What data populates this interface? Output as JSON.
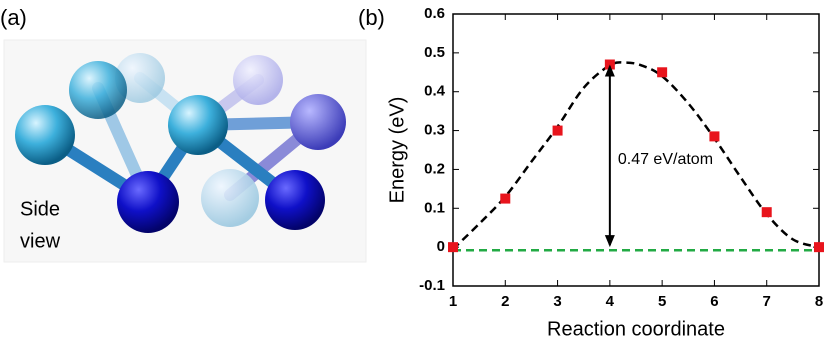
{
  "panel_a": {
    "label": "(a)",
    "caption": [
      "Side",
      "view"
    ]
  },
  "chart_data": {
    "type": "scatter",
    "panel_label": "(b)",
    "x_label": "Reaction coordinate",
    "y_label": "Energy (eV)",
    "series": [
      {
        "kind": "points",
        "marker": "square",
        "color": "#e8141c",
        "x": [
          1,
          2,
          3,
          4,
          5,
          6,
          7,
          8
        ],
        "values": [
          0,
          0.125,
          0.3,
          0.47,
          0.45,
          0.285,
          0.09,
          0
        ]
      },
      {
        "kind": "curve",
        "dash": true,
        "color": "#000000",
        "x": [
          1,
          1.5,
          2,
          2.5,
          3,
          3.5,
          4,
          4.3,
          4.6,
          5,
          5.5,
          6,
          6.5,
          7,
          7.5,
          8
        ],
        "values": [
          -0.005,
          0.06,
          0.13,
          0.22,
          0.31,
          0.41,
          0.468,
          0.475,
          0.468,
          0.44,
          0.37,
          0.28,
          0.18,
          0.085,
          0.02,
          0
        ]
      }
    ],
    "reference_line": {
      "value": -0.008,
      "color": "#22aa44"
    },
    "annotation": {
      "text": "0.47 eV/atom",
      "x": 4,
      "from": 0,
      "to": 0.47
    },
    "xlim": [
      1,
      8
    ],
    "xticks": [
      1,
      2,
      3,
      4,
      5,
      6,
      7,
      8
    ],
    "ylim": [
      -0.1,
      0.6
    ],
    "yticks": [
      -0.1,
      0,
      0.1,
      0.2,
      0.3,
      0.4,
      0.5,
      0.6
    ]
  }
}
